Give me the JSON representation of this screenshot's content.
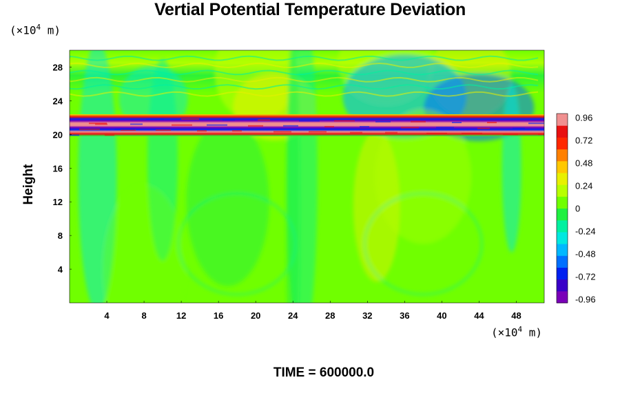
{
  "chart_data": {
    "type": "heatmap",
    "title": "Vertial Potential Temperature Deviation",
    "xlabel": "",
    "ylabel": "Height",
    "x_unit": "(×10",
    "x_unit_exp": "4",
    "x_unit_suffix": " m)",
    "y_unit": "(×10",
    "y_unit_exp": "4",
    "y_unit_suffix": " m)",
    "xlim": [
      0,
      51
    ],
    "ylim": [
      0,
      30
    ],
    "x_ticks": [
      4,
      8,
      12,
      16,
      20,
      24,
      28,
      32,
      36,
      40,
      44,
      48
    ],
    "y_ticks": [
      4,
      8,
      12,
      16,
      20,
      24,
      28
    ],
    "x_tick_labels": [
      "4",
      "8",
      "12",
      "16",
      "20",
      "24",
      "28",
      "32",
      "36",
      "40",
      "44",
      "48"
    ],
    "y_tick_labels": [
      "4",
      "8",
      "12",
      "16",
      "20",
      "24",
      "28"
    ],
    "colorbar": {
      "range": [
        -1.0,
        1.0
      ],
      "ticks": [
        0.96,
        0.72,
        0.48,
        0.24,
        0,
        -0.24,
        -0.48,
        -0.72,
        -0.96
      ],
      "tick_labels": [
        "0.96",
        "0.72",
        "0.48",
        "0.24",
        "0",
        "-0.24",
        "-0.48",
        "-0.72",
        "-0.96"
      ],
      "colors": [
        "#7a00b8",
        "#3a00c8",
        "#0020f0",
        "#0070ff",
        "#00b8ff",
        "#00e8e0",
        "#00f0a0",
        "#20f040",
        "#70ff00",
        "#b8ff00",
        "#e8f000",
        "#ffc800",
        "#ff8000",
        "#ff2800",
        "#e81010",
        "#f09090"
      ]
    },
    "features": {
      "background_value": 0.05,
      "strong_band_height": [
        20,
        22
      ],
      "weak_band_height": [
        22,
        25
      ]
    }
  },
  "footer": "TIME = 600000.0"
}
